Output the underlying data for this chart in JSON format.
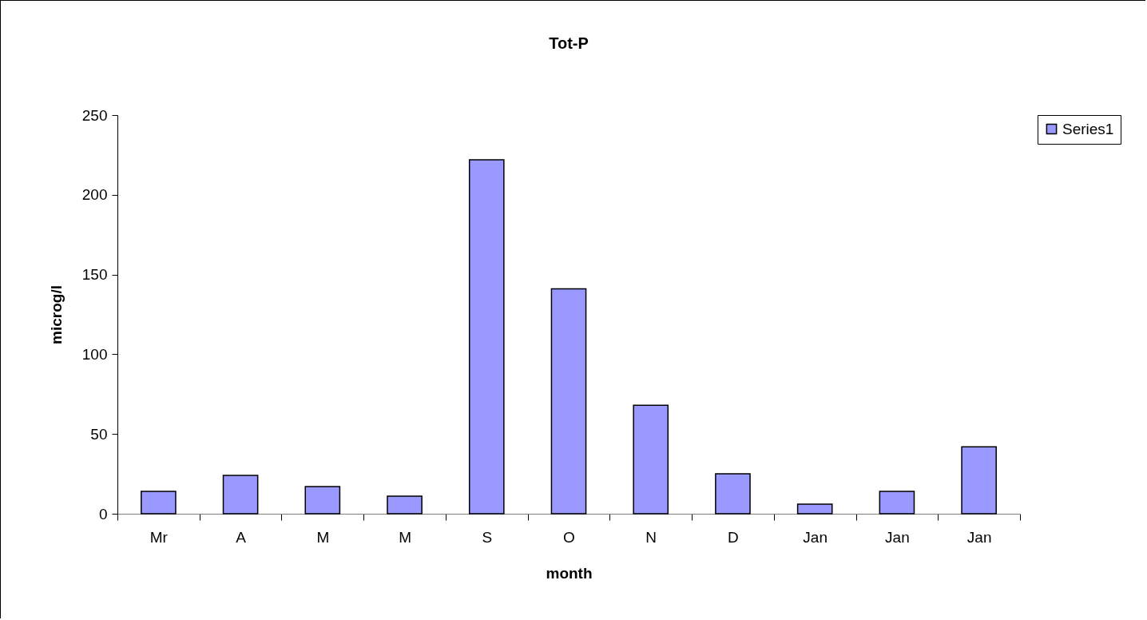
{
  "chart_data": {
    "type": "bar",
    "title": "Tot-P",
    "xlabel": "month",
    "ylabel": "microg/l",
    "categories": [
      "Mr",
      "A",
      "M",
      "M",
      "S",
      "O",
      "N",
      "D",
      "Jan",
      "Jan",
      "Jan"
    ],
    "series": [
      {
        "name": "Series1",
        "color": "#9999ff",
        "values": [
          14,
          24,
          17,
          11,
          222,
          141,
          68,
          25,
          6,
          14,
          42
        ]
      }
    ],
    "ylim": [
      0,
      250
    ],
    "yticks": [
      0,
      50,
      100,
      150,
      200,
      250
    ],
    "grid": false,
    "legend": "right"
  }
}
